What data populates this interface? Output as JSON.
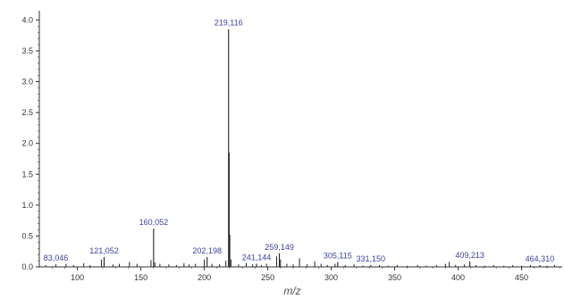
{
  "chart_data": {
    "type": "bar",
    "xlabel": "m/z",
    "ylabel": "",
    "xlim": [
      70,
      482
    ],
    "ylim": [
      0,
      4.15
    ],
    "x_ticks": [
      "100",
      "150",
      "200",
      "250",
      "300",
      "350",
      "400",
      "450"
    ],
    "y_ticks": [
      "0.0",
      "0.5",
      "1.0",
      "1.5",
      "2.0",
      "2.5",
      "3.0",
      "3.5",
      "4.0"
    ],
    "grid": false,
    "colors": {
      "stick": "#222222",
      "label": "#3b3f9c",
      "axis": "#333333"
    },
    "labeled_peaks": [
      {
        "x": 83.046,
        "y": 0.04,
        "label": "83,046"
      },
      {
        "x": 121.052,
        "y": 0.16,
        "label": "121,052"
      },
      {
        "x": 160.052,
        "y": 0.62,
        "label": "160,052"
      },
      {
        "x": 202.198,
        "y": 0.16,
        "label": "202,198"
      },
      {
        "x": 219.116,
        "y": 3.85,
        "label": "219,116"
      },
      {
        "x": 241.144,
        "y": 0.05,
        "label": "241,144"
      },
      {
        "x": 259.149,
        "y": 0.22,
        "label": "259,149"
      },
      {
        "x": 305.115,
        "y": 0.08,
        "label": "305,115"
      },
      {
        "x": 331.15,
        "y": 0.03,
        "label": "331,150"
      },
      {
        "x": 409.213,
        "y": 0.09,
        "label": "409,213"
      },
      {
        "x": 464.31,
        "y": 0.03,
        "label": "464,310"
      }
    ],
    "minor_peaks": [
      {
        "x": 75,
        "y": 0.03
      },
      {
        "x": 91,
        "y": 0.05
      },
      {
        "x": 97,
        "y": 0.03
      },
      {
        "x": 105,
        "y": 0.06
      },
      {
        "x": 110,
        "y": 0.03
      },
      {
        "x": 119,
        "y": 0.12
      },
      {
        "x": 128,
        "y": 0.04
      },
      {
        "x": 133,
        "y": 0.05
      },
      {
        "x": 141,
        "y": 0.08
      },
      {
        "x": 147,
        "y": 0.05
      },
      {
        "x": 158,
        "y": 0.11
      },
      {
        "x": 161,
        "y": 0.07
      },
      {
        "x": 165,
        "y": 0.05
      },
      {
        "x": 172,
        "y": 0.04
      },
      {
        "x": 178,
        "y": 0.03
      },
      {
        "x": 184,
        "y": 0.06
      },
      {
        "x": 188,
        "y": 0.04
      },
      {
        "x": 193,
        "y": 0.05
      },
      {
        "x": 200,
        "y": 0.12
      },
      {
        "x": 206,
        "y": 0.05
      },
      {
        "x": 212,
        "y": 0.04
      },
      {
        "x": 217,
        "y": 0.1
      },
      {
        "x": 219.6,
        "y": 1.85
      },
      {
        "x": 220.1,
        "y": 0.52
      },
      {
        "x": 221,
        "y": 0.12
      },
      {
        "x": 227,
        "y": 0.04
      },
      {
        "x": 233,
        "y": 0.06
      },
      {
        "x": 238,
        "y": 0.04
      },
      {
        "x": 245,
        "y": 0.03
      },
      {
        "x": 249,
        "y": 0.05
      },
      {
        "x": 257,
        "y": 0.17
      },
      {
        "x": 260,
        "y": 0.12
      },
      {
        "x": 265,
        "y": 0.05
      },
      {
        "x": 270,
        "y": 0.04
      },
      {
        "x": 275,
        "y": 0.14
      },
      {
        "x": 281,
        "y": 0.04
      },
      {
        "x": 287,
        "y": 0.09
      },
      {
        "x": 292,
        "y": 0.05
      },
      {
        "x": 297,
        "y": 0.03
      },
      {
        "x": 303,
        "y": 0.05
      },
      {
        "x": 311,
        "y": 0.03
      },
      {
        "x": 318,
        "y": 0.04
      },
      {
        "x": 325,
        "y": 0.02
      },
      {
        "x": 338,
        "y": 0.03
      },
      {
        "x": 345,
        "y": 0.02
      },
      {
        "x": 352,
        "y": 0.03
      },
      {
        "x": 360,
        "y": 0.02
      },
      {
        "x": 368,
        "y": 0.03
      },
      {
        "x": 375,
        "y": 0.02
      },
      {
        "x": 383,
        "y": 0.03
      },
      {
        "x": 390,
        "y": 0.05
      },
      {
        "x": 393,
        "y": 0.08
      },
      {
        "x": 398,
        "y": 0.03
      },
      {
        "x": 405,
        "y": 0.04
      },
      {
        "x": 414,
        "y": 0.03
      },
      {
        "x": 421,
        "y": 0.02
      },
      {
        "x": 428,
        "y": 0.03
      },
      {
        "x": 436,
        "y": 0.02
      },
      {
        "x": 443,
        "y": 0.03
      },
      {
        "x": 450,
        "y": 0.02
      },
      {
        "x": 457,
        "y": 0.03
      },
      {
        "x": 470,
        "y": 0.02
      },
      {
        "x": 476,
        "y": 0.03
      }
    ]
  }
}
